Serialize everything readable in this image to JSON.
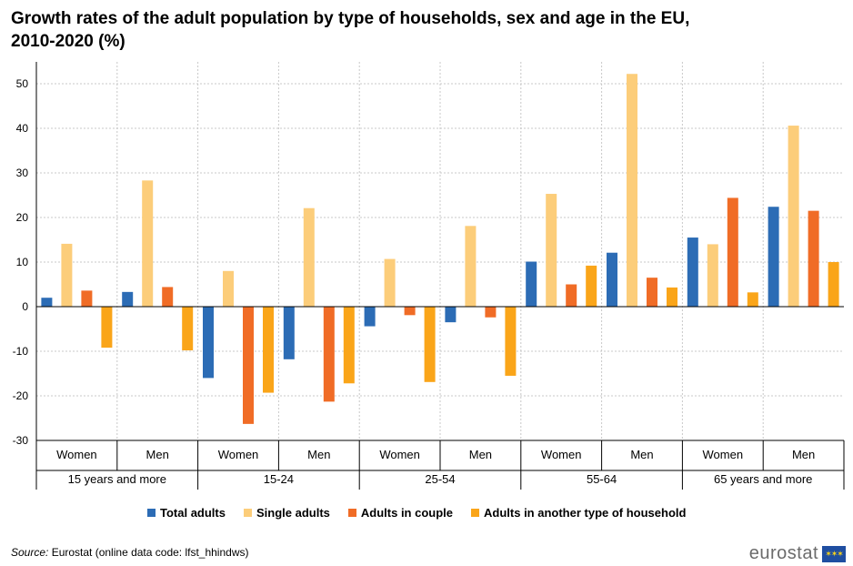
{
  "chart_data": {
    "type": "bar",
    "title": "Growth rates of the adult population by type of households, sex and age in the EU, 2010-2020 (%)",
    "xlabel": "",
    "ylabel": "",
    "ylim": [
      -30,
      55
    ],
    "yticks": [
      50,
      40,
      30,
      20,
      10,
      0,
      -10,
      -20,
      -30
    ],
    "grid": true,
    "legend_position": "bottom",
    "groups": [
      "15 years and more",
      "15-24",
      "25-54",
      "55-64",
      "65 years and more"
    ],
    "categories": [
      "Women",
      "Men",
      "Women",
      "Men",
      "Women",
      "Men",
      "Women",
      "Men",
      "Women",
      "Men"
    ],
    "series": [
      {
        "name": "Total adults",
        "color": "#2c6cb5",
        "values": [
          2.0,
          3.3,
          -16.0,
          -11.8,
          -4.4,
          -3.5,
          10.1,
          12.1,
          15.5,
          22.4
        ]
      },
      {
        "name": "Single adults",
        "color": "#fccd7a",
        "values": [
          14.1,
          28.3,
          8.0,
          22.1,
          10.7,
          18.1,
          25.3,
          52.2,
          14.0,
          40.6
        ]
      },
      {
        "name": "Adults in couple",
        "color": "#f06c26",
        "values": [
          3.6,
          4.4,
          -26.3,
          -21.3,
          -1.9,
          -2.4,
          5.0,
          6.5,
          24.4,
          21.5
        ]
      },
      {
        "name": "Adults in another type of household",
        "color": "#faa519",
        "values": [
          -9.2,
          -9.8,
          -19.3,
          -17.2,
          -16.9,
          -15.5,
          9.2,
          4.3,
          3.2,
          10.0
        ]
      }
    ]
  },
  "source": {
    "label": "Source:",
    "text": " Eurostat (online data code: lfst_hhindws)"
  },
  "brand": {
    "name": "eurostat",
    "flag_icon": "eu-flag-icon"
  }
}
